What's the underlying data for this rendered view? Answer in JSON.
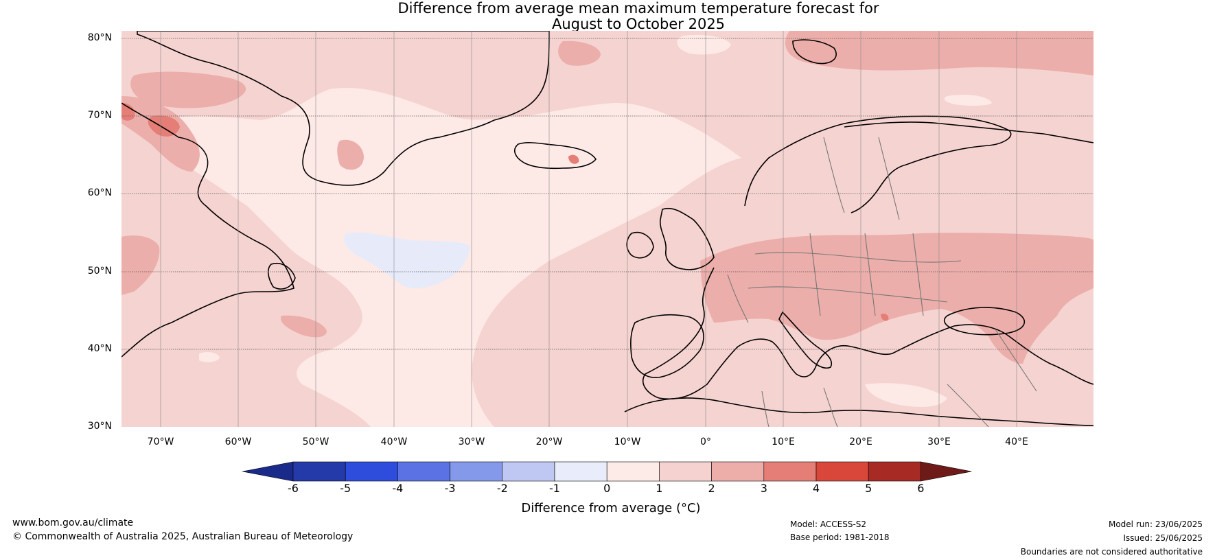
{
  "title": {
    "line1": "Difference from average mean maximum temperature forecast for",
    "line2": "August to October 2025"
  },
  "map": {
    "lat_labels": [
      "80°N",
      "70°N",
      "60°N",
      "50°N",
      "40°N",
      "30°N"
    ],
    "lon_labels": [
      "70°W",
      "60°W",
      "50°W",
      "40°W",
      "30°W",
      "20°W",
      "10°W",
      "0°",
      "10°E",
      "20°E",
      "30°E",
      "40°E"
    ],
    "colors": {
      "ocean_base": "#fbe9e7",
      "band_0_1": "#fde9e6",
      "band_1_2": "#f5d3d0",
      "band_2_3": "#ecaeaa",
      "band_3_4": "#e47e76",
      "band_neg1_0": "#e7ebf9",
      "coast": "#000000",
      "border": "#777777"
    }
  },
  "colorbar": {
    "ticks": [
      "-6",
      "-5",
      "-4",
      "-3",
      "-2",
      "-1",
      "0",
      "1",
      "2",
      "3",
      "4",
      "5",
      "6"
    ],
    "colors": [
      "#1a2a8a",
      "#243aa8",
      "#2e4ddc",
      "#5b72e4",
      "#8499ea",
      "#bfc8f3",
      "#e8ecfb",
      "#fdebe8",
      "#f5d2cf",
      "#edaeaa",
      "#e47e76",
      "#d9463a",
      "#a82a24",
      "#6e1a18"
    ],
    "label": "Difference from average (°C)"
  },
  "footer": {
    "url": "www.bom.gov.au/climate",
    "copyright": "© Commonwealth of Australia 2025, Australian Bureau of Meteorology",
    "model": "Model: ACCESS-S2",
    "base_period": "Base period: 1981-2018",
    "model_run": "Model run: 23/06/2025",
    "issued": "Issued: 25/06/2025",
    "boundaries": "Boundaries are not considered authoritative"
  }
}
